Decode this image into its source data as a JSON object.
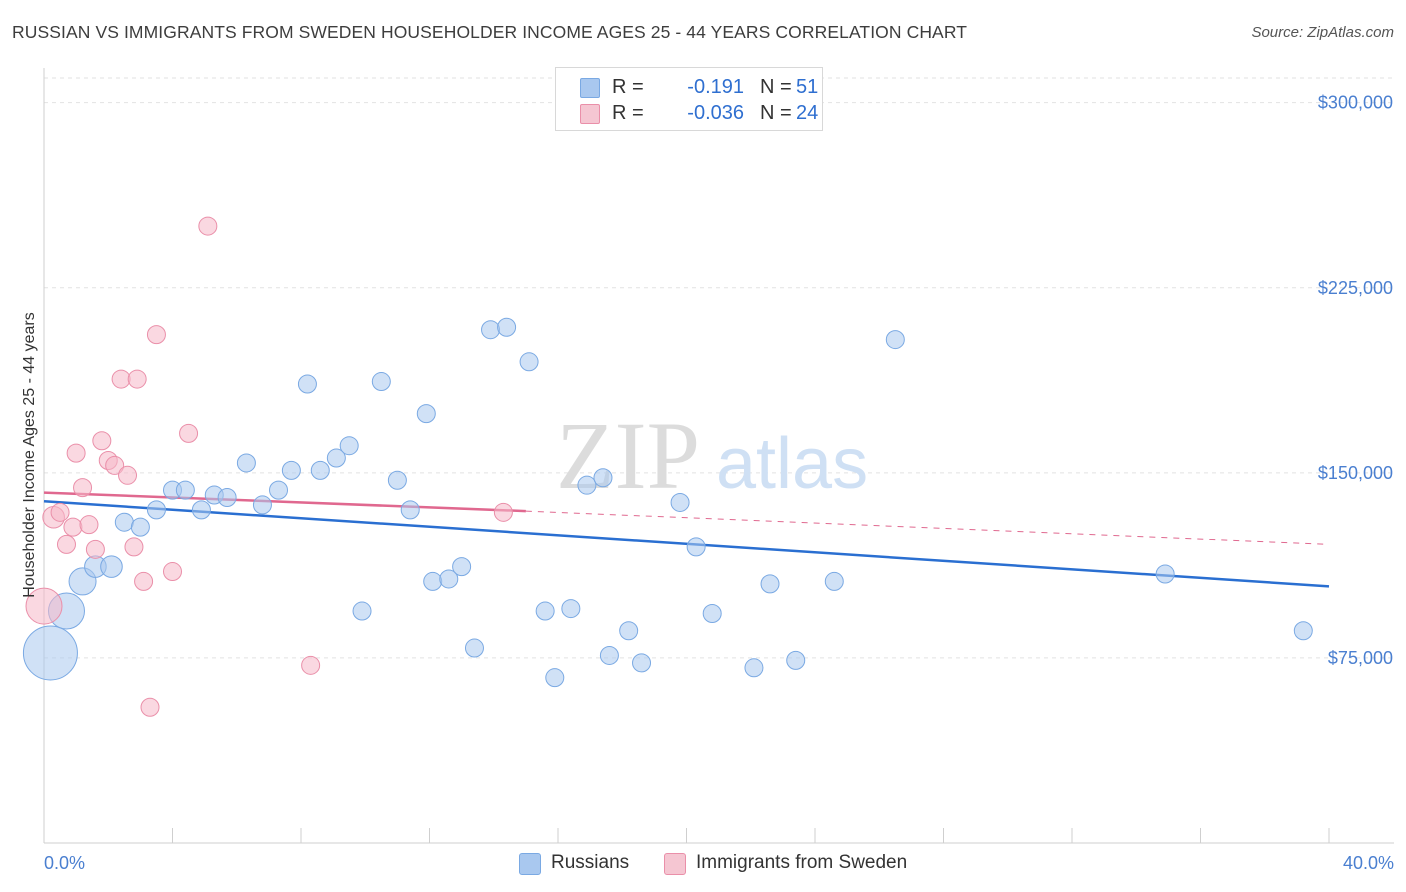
{
  "title": "RUSSIAN VS IMMIGRANTS FROM SWEDEN HOUSEHOLDER INCOME AGES 25 - 44 YEARS CORRELATION CHART",
  "source": "Source: ZipAtlas.com",
  "watermark": {
    "zip": "ZIP",
    "atlas": "atlas"
  },
  "legend": {
    "russians": {
      "r_label": "R =",
      "r_value": "-0.191",
      "n_label": "N =",
      "n_value": "51",
      "color": "#a9c8ef"
    },
    "sweden": {
      "r_label": "R =",
      "r_value": "-0.036",
      "n_label": "N =",
      "n_value": "24",
      "color": "#f5b8c8"
    }
  },
  "bottom_legend": {
    "russians": "Russians",
    "sweden": "Immigrants from Sweden"
  },
  "colors": {
    "blue_fill": "#a9c8ef",
    "blue_stroke": "#7aa9e3",
    "blue_line": "#2a6fd1",
    "pink_fill": "#f5b8c8",
    "pink_stroke": "#ea8fa9",
    "pink_line": "#e0688f"
  },
  "chart_data": {
    "type": "scatter",
    "title": "RUSSIAN VS IMMIGRANTS FROM SWEDEN HOUSEHOLDER INCOME AGES 25 - 44 YEARS CORRELATION CHART",
    "xlabel": "",
    "ylabel": "Householder Income Ages 25 - 44 years",
    "xlim": [
      0,
      40
    ],
    "ylim": [
      0,
      310000
    ],
    "x_tick_labels": [
      "0.0%",
      "40.0%"
    ],
    "y_ticks": [
      {
        "value": 75000,
        "label": "$75,000"
      },
      {
        "value": 150000,
        "label": "$150,000"
      },
      {
        "value": 225000,
        "label": "$225,000"
      },
      {
        "value": 300000,
        "label": "$300,000"
      }
    ],
    "grid": true,
    "series": [
      {
        "name": "Russians",
        "trend": {
          "x0": 0,
          "y0": 138500,
          "x1": 40,
          "y1": 104000
        },
        "points": [
          {
            "x": 0.2,
            "y": 77000,
            "s": 3
          },
          {
            "x": 0.7,
            "y": 94000,
            "s": 2
          },
          {
            "x": 1.2,
            "y": 106000,
            "s": 1.5
          },
          {
            "x": 1.6,
            "y": 112000,
            "s": 1.2
          },
          {
            "x": 2.1,
            "y": 112000,
            "s": 1.2
          },
          {
            "x": 2.5,
            "y": 130000,
            "s": 1
          },
          {
            "x": 3.0,
            "y": 128000,
            "s": 1
          },
          {
            "x": 3.5,
            "y": 135000,
            "s": 1
          },
          {
            "x": 4.0,
            "y": 143000,
            "s": 1
          },
          {
            "x": 4.4,
            "y": 143000,
            "s": 1
          },
          {
            "x": 4.9,
            "y": 135000,
            "s": 1
          },
          {
            "x": 5.3,
            "y": 141000,
            "s": 1
          },
          {
            "x": 5.7,
            "y": 140000,
            "s": 1
          },
          {
            "x": 6.3,
            "y": 154000,
            "s": 1
          },
          {
            "x": 6.8,
            "y": 137000,
            "s": 1
          },
          {
            "x": 7.3,
            "y": 143000,
            "s": 1
          },
          {
            "x": 7.7,
            "y": 151000,
            "s": 1
          },
          {
            "x": 8.2,
            "y": 186000,
            "s": 1
          },
          {
            "x": 8.6,
            "y": 151000,
            "s": 1
          },
          {
            "x": 9.1,
            "y": 156000,
            "s": 1
          },
          {
            "x": 9.5,
            "y": 161000,
            "s": 1
          },
          {
            "x": 9.9,
            "y": 94000,
            "s": 1
          },
          {
            "x": 10.5,
            "y": 187000,
            "s": 1
          },
          {
            "x": 11.0,
            "y": 147000,
            "s": 1
          },
          {
            "x": 11.4,
            "y": 135000,
            "s": 1
          },
          {
            "x": 11.9,
            "y": 174000,
            "s": 1
          },
          {
            "x": 12.1,
            "y": 106000,
            "s": 1
          },
          {
            "x": 12.6,
            "y": 107000,
            "s": 1
          },
          {
            "x": 13.0,
            "y": 112000,
            "s": 1
          },
          {
            "x": 13.4,
            "y": 79000,
            "s": 1
          },
          {
            "x": 13.9,
            "y": 208000,
            "s": 1
          },
          {
            "x": 14.4,
            "y": 209000,
            "s": 1
          },
          {
            "x": 15.1,
            "y": 195000,
            "s": 1
          },
          {
            "x": 15.6,
            "y": 94000,
            "s": 1
          },
          {
            "x": 15.9,
            "y": 67000,
            "s": 1
          },
          {
            "x": 16.4,
            "y": 95000,
            "s": 1
          },
          {
            "x": 16.9,
            "y": 145000,
            "s": 1
          },
          {
            "x": 17.4,
            "y": 148000,
            "s": 1
          },
          {
            "x": 17.6,
            "y": 76000,
            "s": 1
          },
          {
            "x": 18.2,
            "y": 86000,
            "s": 1
          },
          {
            "x": 18.6,
            "y": 73000,
            "s": 1
          },
          {
            "x": 19.8,
            "y": 138000,
            "s": 1
          },
          {
            "x": 20.3,
            "y": 120000,
            "s": 1
          },
          {
            "x": 20.8,
            "y": 93000,
            "s": 1
          },
          {
            "x": 22.1,
            "y": 71000,
            "s": 1
          },
          {
            "x": 22.6,
            "y": 105000,
            "s": 1
          },
          {
            "x": 23.4,
            "y": 74000,
            "s": 1
          },
          {
            "x": 24.6,
            "y": 106000,
            "s": 1
          },
          {
            "x": 26.5,
            "y": 204000,
            "s": 1
          },
          {
            "x": 34.9,
            "y": 109000,
            "s": 1
          },
          {
            "x": 39.2,
            "y": 86000,
            "s": 1
          }
        ]
      },
      {
        "name": "Immigrants from Sweden",
        "trend": {
          "x0": 0,
          "y0": 142000,
          "x1": 15,
          "y1": 134500,
          "dash_x1": 40,
          "dash_y1": 121000
        },
        "points": [
          {
            "x": 0.0,
            "y": 96000,
            "s": 2
          },
          {
            "x": 0.3,
            "y": 132000,
            "s": 1.2
          },
          {
            "x": 0.5,
            "y": 134000,
            "s": 1
          },
          {
            "x": 0.7,
            "y": 121000,
            "s": 1
          },
          {
            "x": 0.9,
            "y": 128000,
            "s": 1
          },
          {
            "x": 1.0,
            "y": 158000,
            "s": 1
          },
          {
            "x": 1.2,
            "y": 144000,
            "s": 1
          },
          {
            "x": 1.4,
            "y": 129000,
            "s": 1
          },
          {
            "x": 1.6,
            "y": 119000,
            "s": 1
          },
          {
            "x": 1.8,
            "y": 163000,
            "s": 1
          },
          {
            "x": 2.0,
            "y": 155000,
            "s": 1
          },
          {
            "x": 2.2,
            "y": 153000,
            "s": 1
          },
          {
            "x": 2.4,
            "y": 188000,
            "s": 1
          },
          {
            "x": 2.6,
            "y": 149000,
            "s": 1
          },
          {
            "x": 2.8,
            "y": 120000,
            "s": 1
          },
          {
            "x": 2.9,
            "y": 188000,
            "s": 1
          },
          {
            "x": 3.1,
            "y": 106000,
            "s": 1
          },
          {
            "x": 3.3,
            "y": 55000,
            "s": 1
          },
          {
            "x": 3.5,
            "y": 206000,
            "s": 1
          },
          {
            "x": 4.0,
            "y": 110000,
            "s": 1
          },
          {
            "x": 4.5,
            "y": 166000,
            "s": 1
          },
          {
            "x": 5.1,
            "y": 250000,
            "s": 1
          },
          {
            "x": 8.3,
            "y": 72000,
            "s": 1
          },
          {
            "x": 14.3,
            "y": 134000,
            "s": 1
          }
        ]
      }
    ]
  }
}
